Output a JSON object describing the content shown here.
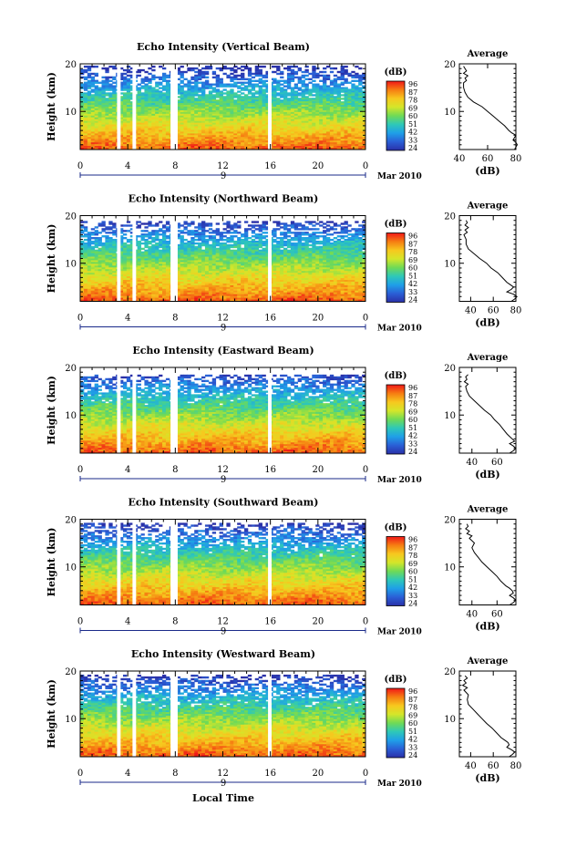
{
  "figure": {
    "xlabel": "Local Time",
    "date_label": "Mar 2010",
    "day_label": "9",
    "avg_title": "Average",
    "colorbar_unit": "(dB)",
    "avg_xlabel": "(dB)",
    "ylabel": "Height (km)"
  },
  "colorbar": {
    "ticks": [
      "96",
      "87",
      "78",
      "69",
      "60",
      "51",
      "42",
      "33",
      "24"
    ],
    "stops": [
      "#f01818",
      "#f67d12",
      "#f7c81e",
      "#d4e62a",
      "#6fda56",
      "#2ec8b8",
      "#1f9fe8",
      "#2a5fd6",
      "#2a30a8"
    ]
  },
  "chart_data": [
    {
      "type": "heatmap",
      "title": "Echo Intensity (Vertical Beam)",
      "x_ticks": [
        "0",
        "4",
        "8",
        "12",
        "16",
        "20",
        "0"
      ],
      "y_ticks": [
        "10",
        "20"
      ],
      "xlim": [
        0,
        24
      ],
      "ylim": [
        2,
        20
      ],
      "gaps_hours": [
        [
          3.1,
          3.4
        ],
        [
          4.4,
          4.7
        ],
        [
          7.6,
          8.2
        ],
        [
          15.8,
          16.1
        ]
      ],
      "top_km": 19.5,
      "profile": {
        "xlim": [
          40,
          80
        ],
        "x_ticks": [
          "40",
          "60",
          "80"
        ],
        "height_km": [
          2,
          2.5,
          3,
          3.5,
          4,
          4.5,
          5,
          5.5,
          6,
          7,
          8,
          9,
          10,
          11,
          12,
          13,
          14,
          15,
          16,
          16.5,
          17,
          17.5,
          18,
          18.5,
          19,
          19.5
        ],
        "db": [
          79,
          80,
          81,
          80,
          78,
          79,
          80,
          77,
          75,
          72,
          68,
          64,
          60,
          56,
          50,
          46,
          44,
          43,
          43,
          45,
          44,
          46,
          43,
          45,
          44,
          43
        ]
      }
    },
    {
      "type": "heatmap",
      "title": "Echo Intensity (Northward Beam)",
      "x_ticks": [
        "0",
        "4",
        "8",
        "12",
        "16",
        "20",
        "0"
      ],
      "y_ticks": [
        "10",
        "20"
      ],
      "xlim": [
        0,
        24
      ],
      "ylim": [
        2,
        20
      ],
      "gaps_hours": [
        [
          3.1,
          3.4
        ],
        [
          4.4,
          4.7
        ],
        [
          7.6,
          8.2
        ],
        [
          15.8,
          16.1
        ]
      ],
      "top_km": 18.5,
      "profile": {
        "xlim": [
          30,
          80
        ],
        "x_ticks": [
          "40",
          "60",
          "80"
        ],
        "height_km": [
          2,
          2.5,
          3,
          3.5,
          4,
          4.5,
          5,
          5.5,
          6,
          7,
          8,
          9,
          10,
          11,
          12,
          13,
          14,
          15,
          16,
          16.5,
          17,
          17.5,
          18,
          18.5,
          19
        ],
        "db": [
          76,
          79,
          81,
          78,
          72,
          76,
          78,
          75,
          72,
          68,
          64,
          58,
          54,
          48,
          43,
          38,
          36,
          36,
          34,
          37,
          35,
          38,
          35,
          37,
          36
        ]
      }
    },
    {
      "type": "heatmap",
      "title": "Echo Intensity (Eastward Beam)",
      "x_ticks": [
        "0",
        "4",
        "8",
        "12",
        "16",
        "20",
        "0"
      ],
      "y_ticks": [
        "10",
        "20"
      ],
      "xlim": [
        0,
        24
      ],
      "ylim": [
        2,
        20
      ],
      "gaps_hours": [
        [
          3.1,
          3.4
        ],
        [
          4.4,
          4.7
        ],
        [
          7.6,
          8.2
        ],
        [
          15.8,
          16.1
        ]
      ],
      "top_km": 18.5,
      "profile": {
        "xlim": [
          30,
          75
        ],
        "x_ticks": [
          "40",
          "60"
        ],
        "height_km": [
          2,
          2.5,
          3,
          3.5,
          4,
          4.5,
          5,
          5.5,
          6,
          7,
          8,
          9,
          10,
          11,
          12,
          13,
          14,
          15,
          16,
          16.5,
          17,
          17.5,
          18,
          18.5
        ],
        "db": [
          70,
          73,
          75,
          73,
          70,
          74,
          72,
          70,
          68,
          65,
          62,
          58,
          55,
          50,
          46,
          42,
          38,
          36,
          35,
          37,
          34,
          36,
          35,
          37
        ]
      }
    },
    {
      "type": "heatmap",
      "title": "Echo Intensity (Southward Beam)",
      "x_ticks": [
        "0",
        "4",
        "8",
        "12",
        "16",
        "20",
        "0"
      ],
      "y_ticks": [
        "10",
        "20"
      ],
      "xlim": [
        0,
        24
      ],
      "ylim": [
        2,
        20
      ],
      "gaps_hours": [
        [
          3.1,
          3.4
        ],
        [
          4.4,
          4.7
        ],
        [
          7.6,
          8.2
        ],
        [
          15.8,
          16.1
        ]
      ],
      "top_km": 19,
      "profile": {
        "xlim": [
          30,
          75
        ],
        "x_ticks": [
          "40",
          "60"
        ],
        "height_km": [
          2,
          2.5,
          3,
          3.5,
          4,
          4.5,
          5,
          5.5,
          6,
          7,
          8,
          9,
          10,
          11,
          12,
          13,
          14,
          15,
          16,
          16.5,
          17,
          17.5,
          18,
          18.5,
          19
        ],
        "db": [
          70,
          73,
          75,
          73,
          70,
          73,
          72,
          70,
          67,
          63,
          60,
          56,
          52,
          48,
          45,
          42,
          40,
          42,
          38,
          40,
          36,
          38,
          35,
          37,
          36
        ]
      }
    },
    {
      "type": "heatmap",
      "title": "Echo Intensity (Westward Beam)",
      "x_ticks": [
        "0",
        "4",
        "8",
        "12",
        "16",
        "20",
        "0"
      ],
      "y_ticks": [
        "10",
        "20"
      ],
      "xlim": [
        0,
        24
      ],
      "ylim": [
        2,
        20
      ],
      "gaps_hours": [
        [
          3.1,
          3.4
        ],
        [
          4.4,
          4.7
        ],
        [
          7.6,
          8.2
        ],
        [
          15.8,
          16.1
        ]
      ],
      "top_km": 19,
      "profile": {
        "xlim": [
          30,
          80
        ],
        "x_ticks": [
          "40",
          "60",
          "80"
        ],
        "height_km": [
          2,
          2.5,
          3,
          3.5,
          4,
          4.5,
          5,
          5.5,
          6,
          7,
          8,
          9,
          10,
          11,
          12,
          13,
          14,
          15,
          16,
          16.5,
          17,
          17.5,
          18,
          18.5,
          19
        ],
        "db": [
          74,
          77,
          79,
          76,
          72,
          74,
          73,
          70,
          67,
          63,
          59,
          54,
          50,
          46,
          42,
          38,
          37,
          38,
          34,
          37,
          33,
          36,
          34,
          37,
          35
        ]
      }
    }
  ]
}
